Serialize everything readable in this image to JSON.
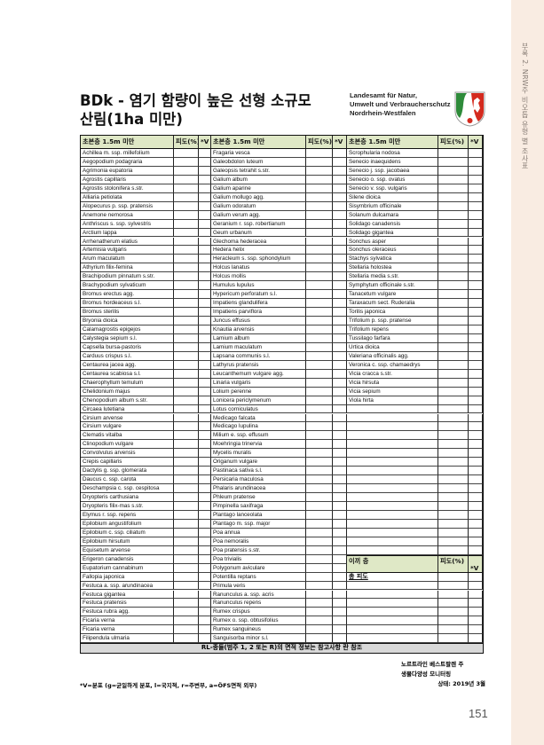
{
  "side_tab": "부록 2. NRW주 비오톱 유형 별 조사표",
  "title_line1": "BDk - 염기 함량이 높은 선형 소규모",
  "title_line2": "산림(1ha 미만)",
  "agency": [
    "Landesamt für Natur,",
    "Umwelt und Verbraucherschutz",
    "Nordrhein-Westfalen"
  ],
  "header": {
    "layer": "초본층 1.5m 미만",
    "cover": "피도(%)",
    "v": "*V"
  },
  "col1": [
    "Achillea m. ssp. millefolium",
    "Aegopodium podagraria",
    "Agrimonia eupatoria",
    "Agrostis capillaris",
    "Agrostis stolonifera s.str.",
    "Alliaria petiolata",
    "Alopecurus p. ssp. pratensis",
    "Anemone nemorosa",
    "Anthriscus s. ssp. sylvestris",
    "Arctium lappa",
    "Arrhenatherum elatius",
    "Artemisia vulgaris",
    "Arum maculatum",
    "Athyrium filix-femina",
    "Brachipodium pinnatum s.str.",
    "Brachypodium sylvaticum",
    "Bromus erectus agg.",
    "Bromus hordeaceus s.l.",
    "Bromus sterilis",
    "Bryonia dioica",
    "Calamagrostis epigejos",
    "Calystegia sepium s.l.",
    "Capsella bursa-pastoris",
    "Carduus crispus s.l.",
    "Centaurea jacea agg.",
    "Centaurea scabiosa s.l.",
    "Chaerophyllum temulum",
    "Chelidonium majus",
    "Chenopodium album s.str.",
    "Circaea lutetiana",
    "Cirsium arvense",
    "Cirsium vulgare",
    "Clematis vitalba",
    "Clinopodium vulgare",
    "Convolvulus arvensis",
    "Crepis capillaris",
    "Dactylis g. ssp. glomerata",
    "Daucus c. ssp. carota",
    "Deschampsia c. ssp. cespitosa",
    "Dryopteris carthusiana",
    "Dryopteris filix-mas s.str.",
    "Elymus r. ssp. repens",
    "Epilobium angustifolium",
    "Epilobium c. ssp. ciliatum",
    "Epilobium hirsutum",
    "Equisetum arvense",
    "Erigeron canadensis",
    "Eupatorium cannabinum",
    "Fallopia japonica",
    "Festuca a. ssp. arundinacea",
    "Festuca gigantea",
    "Festuca pratensis",
    "Festuca rubra agg.",
    "Ficaria verna",
    "Ficaria verna",
    "Filipendula ulmaria"
  ],
  "col2": [
    "Fragaria vesca",
    "Galeobdolon luteum",
    "Galeopsis tetrahit s.str.",
    "Galium album",
    "Galium aparine",
    "Galium mollugo agg.",
    "Galium odoratum",
    "Galium verum agg.",
    "Geranium r. ssp. robertianum",
    "Geum urbanum",
    "Glechoma hederacea",
    "Hedera helix",
    "Heracleum s. ssp. sphondylium",
    "Holcus lanatus",
    "Holcus mollis",
    "Humulus lupulus",
    "Hypericum perforatum s.l.",
    "Impatiens glandulifera",
    "Impatiens parviflora",
    "Juncus effusus",
    "Knautia arvensis",
    "Lamium album",
    "Lamium maculatum",
    "Lapsana communis s.l.",
    "Lathyrus pratensis",
    "Leucanthemum vulgare agg.",
    "Linaria vulgaris",
    "Lolium perenne",
    "Lonicera periclymenum",
    "Lotus corniculatus",
    "Medicago falcata",
    "Medicago lupulina",
    "Milium e. ssp. effusum",
    "Moehringia trinervia",
    "Mycelis muralis",
    "Origanum vulgare",
    "Pastinaca sativa s.l.",
    "Persicaria maculosa",
    "Phalaris arundinacea",
    "Phleum pratense",
    "Pimpinella saxifraga",
    "Plantago lanceolata",
    "Plantago m. ssp. major",
    "Poa annua",
    "Poa nemoralis",
    "Poa pratensis s.str.",
    "Poa trivialis",
    "Polygonum aviculare",
    "Potentilla reptans",
    "Primula veris",
    "Ranunculus a. ssp. acris",
    "Ranunculus repens",
    "Rumex crispus",
    "Rumex o. ssp. obtusifolius",
    "Rumex sanguineus",
    "Sanguisorba minor s.l."
  ],
  "col3": [
    "Scrophularia nodosa",
    "Senecio inaequidens",
    "Senecio j. ssp. jacobaea",
    "Senecio o. ssp. ovatus",
    "Senecio v. ssp. vulgaris",
    "Silene dioica",
    "Sisymbrium officinale",
    "Solanum dulcamara",
    "Solidago canadensis",
    "Solidago gigantea",
    "Sonchus asper",
    "Sonchus oleraceus",
    "Stachys sylvatica",
    "Stellaria holostea",
    "Stellaria media s.str.",
    "Symphytum officinale s.str.",
    "Tanacetum vulgare",
    "Taraxacum sect. Ruderalia",
    "Torilis japonica",
    "Trifolium p. ssp. pratense",
    "Trifolium repens",
    "Tussilago farfara",
    "Urtica dioica",
    "Valeriana officinalis agg.",
    "Veronica c. ssp. chamaedrys",
    "Vicia cracca s.str.",
    "Vicia hirsuta",
    "Vicia sepium",
    "Viola hirta"
  ],
  "moss": {
    "layer": "이끼 층",
    "cover": "피도(%)",
    "v": "*V",
    "total": "총 피도"
  },
  "rl_note": "RL-종들(범주 1, 2 또는 R)의 면적 정보는 참고사항 란 참조",
  "footer_left": "*V=분포 (g=균일하게 분포, l=국지적, r=주변부, a=ÖFS면적 외부)",
  "footer_right": [
    "노르트라인 베스트팔렌 주",
    "생물다양성 모니터링",
    "상태:  2019년 3월"
  ],
  "page_number": "151",
  "colors": {
    "header": "#dfe8c6",
    "side": "#f9ece2"
  }
}
